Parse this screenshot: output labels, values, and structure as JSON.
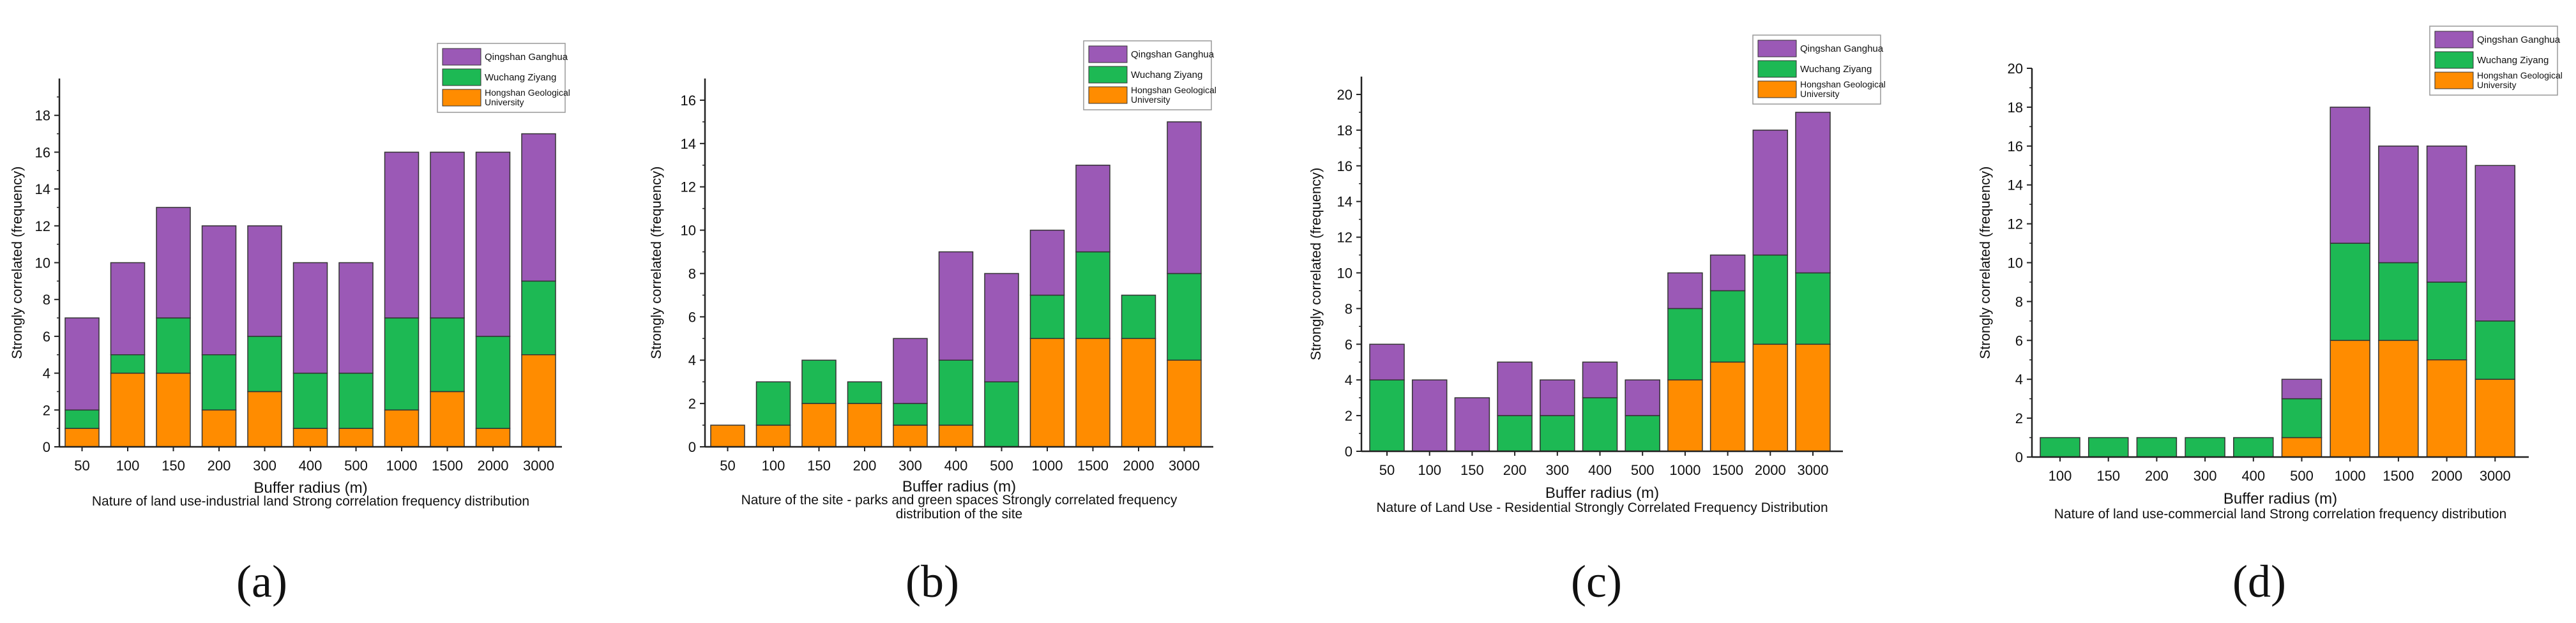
{
  "colors": {
    "qingshan": "#9B59B6",
    "wuchang": "#1DB954",
    "hongshan": "#FF8C00",
    "axis": "#222222",
    "bar_stroke": "#333333"
  },
  "chart_data": [
    {
      "type": "bar",
      "stacked": true,
      "panel_label": "(a)",
      "categories": [
        "50",
        "100",
        "150",
        "200",
        "300",
        "400",
        "500",
        "1000",
        "1500",
        "2000",
        "3000"
      ],
      "series": [
        {
          "name": "Hongshan Geological University",
          "values": [
            1,
            4,
            4,
            2,
            3,
            1,
            1,
            2,
            3,
            1,
            5
          ]
        },
        {
          "name": "Wuchang Ziyang",
          "values": [
            1,
            1,
            3,
            3,
            3,
            3,
            3,
            5,
            4,
            5,
            4
          ]
        },
        {
          "name": "Qingshan Ganghua",
          "values": [
            5,
            5,
            6,
            7,
            6,
            6,
            6,
            9,
            9,
            10,
            8
          ]
        }
      ],
      "legend": [
        "Qingshan Ganghua",
        "Wuchang Ziyang",
        "Hongshan Geological University"
      ],
      "legend_position": "top-right",
      "title": "Nature of land use-industrial land Strong correlation frequency distribution",
      "xlabel": "Buffer radius (m)",
      "ylabel": "Strongly correlated (frequency)",
      "ylim": [
        0,
        20
      ],
      "yticks": [
        0,
        2,
        4,
        6,
        8,
        10,
        12,
        14,
        16,
        18
      ]
    },
    {
      "type": "bar",
      "stacked": true,
      "panel_label": "(b)",
      "categories": [
        "50",
        "100",
        "150",
        "200",
        "300",
        "400",
        "500",
        "1000",
        "1500",
        "2000",
        "3000"
      ],
      "series": [
        {
          "name": "Hongshan Geological University",
          "values": [
            1,
            1,
            2,
            2,
            1,
            1,
            0,
            5,
            5,
            5,
            4
          ]
        },
        {
          "name": "Wuchang Ziyang",
          "values": [
            0,
            2,
            2,
            1,
            1,
            3,
            3,
            2,
            4,
            2,
            4
          ]
        },
        {
          "name": "Qingshan Ganghua",
          "values": [
            0,
            0,
            0,
            0,
            3,
            5,
            5,
            3,
            4,
            0,
            7
          ]
        }
      ],
      "legend": [
        "Qingshan Ganghua",
        "Wuchang Ziyang",
        "Hongshan Geological University"
      ],
      "legend_position": "top-right",
      "title": "Nature of the site - parks and green spaces Strongly correlated frequency distribution of the site",
      "xlabel": "Buffer radius (m)",
      "ylabel": "Strongly correlated (frequency)",
      "ylim": [
        0,
        17
      ],
      "yticks": [
        0,
        2,
        4,
        6,
        8,
        10,
        12,
        14,
        16
      ]
    },
    {
      "type": "bar",
      "stacked": true,
      "panel_label": "(c)",
      "categories": [
        "50",
        "100",
        "150",
        "200",
        "300",
        "400",
        "500",
        "1000",
        "1500",
        "2000",
        "3000"
      ],
      "series": [
        {
          "name": "Hongshan Geological University",
          "values": [
            0,
            0,
            0,
            0,
            0,
            0,
            0,
            4,
            5,
            6,
            6
          ]
        },
        {
          "name": "Wuchang Ziyang",
          "values": [
            4,
            0,
            0,
            2,
            2,
            3,
            2,
            4,
            4,
            5,
            4
          ]
        },
        {
          "name": "Qingshan Ganghua",
          "values": [
            2,
            4,
            3,
            3,
            2,
            2,
            2,
            2,
            2,
            7,
            9
          ]
        }
      ],
      "legend": [
        "Qingshan Ganghua",
        "Wuchang Ziyang",
        "Hongshan Geological University"
      ],
      "legend_position": "top-right",
      "title": "Nature of Land Use - Residential Strongly Correlated Frequency Distribution",
      "xlabel": "Buffer radius (m)",
      "ylabel": "Strongly correlated (frequency)",
      "ylim": [
        0,
        21
      ],
      "yticks": [
        0,
        2,
        4,
        6,
        8,
        10,
        12,
        14,
        16,
        18,
        20
      ]
    },
    {
      "type": "bar",
      "stacked": true,
      "panel_label": "(d)",
      "categories": [
        "100",
        "150",
        "200",
        "300",
        "400",
        "500",
        "1000",
        "1500",
        "2000",
        "3000"
      ],
      "series": [
        {
          "name": "Hongshan Geological University",
          "values": [
            0,
            0,
            0,
            0,
            0,
            1,
            6,
            6,
            5,
            4
          ]
        },
        {
          "name": "Wuchang Ziyang",
          "values": [
            1,
            1,
            1,
            1,
            1,
            2,
            5,
            4,
            4,
            3
          ]
        },
        {
          "name": "Qingshan Ganghua",
          "values": [
            0,
            0,
            0,
            0,
            0,
            1,
            7,
            6,
            7,
            8
          ]
        }
      ],
      "legend": [
        "Qingshan Ganghua",
        "Wuchang Ziyang",
        "Hongshan Geological University"
      ],
      "legend_position": "top-right",
      "title": "Nature of land use-commercial land Strong correlation frequency distribution",
      "xlabel": "Buffer radius (m)",
      "ylabel": "Strongly correlated (frequency)",
      "ylim": [
        0,
        20
      ],
      "yticks": [
        0,
        2,
        4,
        6,
        8,
        10,
        12,
        14,
        16,
        18,
        20
      ]
    }
  ]
}
